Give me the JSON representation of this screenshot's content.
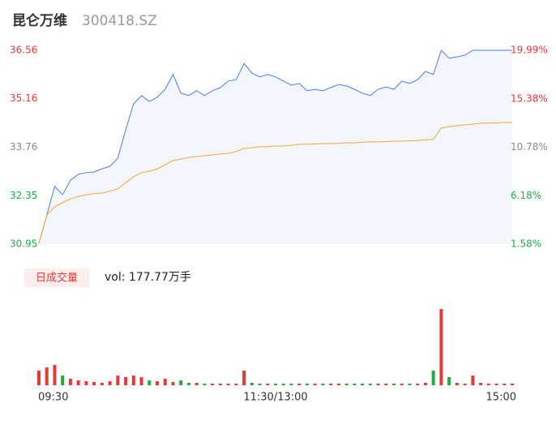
{
  "chart_data": {
    "type": "intraday",
    "title": "昆仑万维",
    "subtitle": "300418.SZ",
    "categories": [
      "09:30",
      null,
      null,
      null,
      null,
      null,
      null,
      null,
      null,
      null,
      null,
      null,
      null,
      null,
      null,
      null,
      null,
      null,
      null,
      null,
      null,
      null,
      null,
      null,
      null,
      null,
      null,
      null,
      null,
      null,
      "11:30/13:00",
      null,
      null,
      null,
      null,
      null,
      null,
      null,
      null,
      null,
      null,
      null,
      null,
      null,
      null,
      null,
      null,
      null,
      null,
      null,
      null,
      null,
      null,
      null,
      null,
      null,
      null,
      null,
      null,
      null,
      "15:00"
    ],
    "series": [
      {
        "name": "price",
        "color": "#4a7ee0",
        "values": [
          30.97,
          31.79,
          32.62,
          32.38,
          32.8,
          32.97,
          33.02,
          33.04,
          33.13,
          33.2,
          33.44,
          34.26,
          35.01,
          35.25,
          35.08,
          35.2,
          35.43,
          35.86,
          35.32,
          35.25,
          35.39,
          35.25,
          35.39,
          35.48,
          35.67,
          35.71,
          36.18,
          35.9,
          35.79,
          35.86,
          35.79,
          35.67,
          35.55,
          35.6,
          35.39,
          35.43,
          35.39,
          35.48,
          35.57,
          35.53,
          35.43,
          35.32,
          35.25,
          35.43,
          35.5,
          35.43,
          35.67,
          35.6,
          35.71,
          35.95,
          35.86,
          36.56,
          36.33,
          36.37,
          36.42,
          36.56,
          36.56,
          36.56,
          36.56,
          36.56,
          36.56
        ]
      },
      {
        "name": "average",
        "color": "#f0a830",
        "values": [
          30.97,
          31.79,
          32.03,
          32.15,
          32.26,
          32.33,
          32.38,
          32.41,
          32.43,
          32.48,
          32.55,
          32.73,
          32.9,
          33.02,
          33.06,
          33.13,
          33.25,
          33.37,
          33.41,
          33.46,
          33.49,
          33.51,
          33.53,
          33.56,
          33.58,
          33.63,
          33.72,
          33.74,
          33.77,
          33.77,
          33.79,
          33.79,
          33.81,
          33.84,
          33.84,
          33.85,
          33.86,
          33.86,
          33.87,
          33.88,
          33.88,
          33.9,
          33.91,
          33.91,
          33.92,
          33.93,
          33.93,
          33.94,
          33.95,
          33.97,
          33.98,
          34.31,
          34.35,
          34.38,
          34.4,
          34.42,
          34.45,
          34.45,
          34.46,
          34.47,
          34.47
        ]
      }
    ],
    "volume": {
      "label": "日成交量",
      "text": "vol: 177.77万手",
      "up_color": "#e83838",
      "down_color": "#22aa44",
      "values": [
        18,
        22,
        25,
        12,
        8,
        6,
        5,
        4,
        3,
        5,
        12,
        10,
        12,
        10,
        6,
        5,
        8,
        4,
        6,
        3,
        3,
        2,
        2,
        2,
        2,
        2,
        18,
        3,
        2,
        2,
        2,
        2,
        2,
        2,
        2,
        2,
        2,
        2,
        2,
        2,
        2,
        2,
        2,
        2,
        2,
        2,
        2,
        2,
        2,
        3,
        18,
        94,
        10,
        3,
        2,
        12,
        3,
        2,
        2,
        2,
        2
      ]
    },
    "ylim": [
      30.95,
      36.56
    ],
    "yticks": [
      30.95,
      32.35,
      33.76,
      35.16,
      36.56
    ],
    "ytick_colors": [
      "#22aa44",
      "#22aa44",
      "#888888",
      "#e83838",
      "#e83838"
    ],
    "y2lim": [
      1.58,
      19.99
    ],
    "y2ticks": [
      {
        "value": 1.58,
        "label": "1.58%"
      },
      {
        "value": 6.18,
        "label": "6.18%"
      },
      {
        "value": 10.78,
        "label": "10.78%"
      },
      {
        "value": 15.38,
        "label": "15.38%"
      },
      {
        "value": 19.99,
        "label": "19.99%"
      }
    ],
    "area_color": "#f3f6fd"
  }
}
